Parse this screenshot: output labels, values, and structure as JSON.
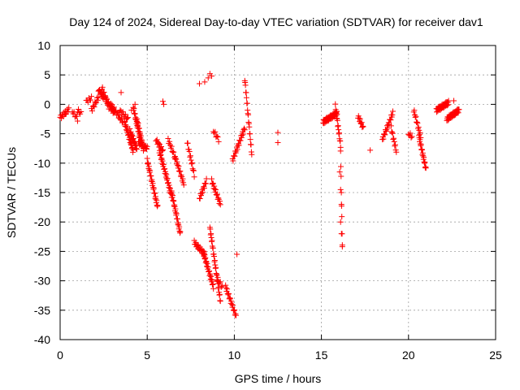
{
  "chart_data": {
    "type": "scatter",
    "title": "Day 124 of 2024, Sidereal Day-to-day VTEC variation (SDTVAR) for receiver dav1",
    "xlabel": "GPS time / hours",
    "ylabel": "SDTVAR / TECUs",
    "xlim": [
      0,
      25
    ],
    "ylim": [
      -40,
      10
    ],
    "xticks": [
      0,
      5,
      10,
      15,
      20,
      25
    ],
    "xtick_labels": [
      "0",
      "5",
      "10",
      "15",
      "20",
      "25"
    ],
    "yticks": [
      10,
      5,
      0,
      -5,
      -10,
      -15,
      -20,
      -25,
      -30,
      -35,
      -40
    ],
    "ytick_labels": [
      "10",
      "5",
      "0",
      "-5",
      "-10",
      "-15",
      "-20",
      "-25",
      "-30",
      "-35",
      "-40"
    ],
    "grid": true,
    "marker": "+",
    "series": [
      {
        "name": "SDTVAR",
        "color": "#ff0000",
        "segments": [
          {
            "x0": 0.0,
            "x1": 0.3,
            "y0": -2.2,
            "y1": -1.5,
            "step": 0.04
          },
          {
            "x0": 0.3,
            "x1": 0.5,
            "y0": -1.5,
            "y1": -0.8,
            "step": 0.04
          },
          {
            "x0": 0.7,
            "x1": 1.0,
            "y0": -1.2,
            "y1": -2.5,
            "step": 0.05
          },
          {
            "x0": 1.0,
            "x1": 1.2,
            "y0": -1.0,
            "y1": -1.6,
            "step": 0.05
          },
          {
            "x0": 1.5,
            "x1": 1.8,
            "y0": 0.5,
            "y1": 1.0,
            "step": 0.05
          },
          {
            "x0": 1.8,
            "x1": 2.2,
            "y0": -1.0,
            "y1": 1.2,
            "step": 0.04
          },
          {
            "x0": 2.2,
            "x1": 2.5,
            "y0": 2.5,
            "y1": 1.0,
            "step": 0.03
          },
          {
            "x0": 2.4,
            "x1": 2.8,
            "y0": 2.8,
            "y1": -0.5,
            "step": 0.03
          },
          {
            "x0": 2.6,
            "x1": 3.1,
            "y0": 1.0,
            "y1": -1.5,
            "step": 0.03
          },
          {
            "x0": 2.9,
            "x1": 3.6,
            "y0": 0.0,
            "y1": -3.0,
            "step": 0.04
          },
          {
            "x0": 3.4,
            "x1": 3.9,
            "y0": -1.0,
            "y1": -2.5,
            "step": 0.05
          },
          {
            "x0": 3.7,
            "x1": 4.2,
            "y0": -3.0,
            "y1": -8.0,
            "step": 0.02
          },
          {
            "x0": 4.0,
            "x1": 4.4,
            "y0": -4.5,
            "y1": -7.5,
            "step": 0.02
          },
          {
            "x0": 4.2,
            "x1": 4.6,
            "y0": -0.5,
            "y1": -6.0,
            "step": 0.02
          },
          {
            "x0": 4.4,
            "x1": 4.8,
            "y0": -2.5,
            "y1": -7.8,
            "step": 0.02
          },
          {
            "x0": 4.5,
            "x1": 5.0,
            "y0": -6.5,
            "y1": -7.5,
            "step": 0.03
          },
          {
            "x0": 5.0,
            "x1": 5.6,
            "y0": -9.5,
            "y1": -17.5,
            "step": 0.02
          },
          {
            "x0": 5.5,
            "x1": 5.9,
            "y0": -6.0,
            "y1": -8.0,
            "step": 0.03
          },
          {
            "x0": 5.7,
            "x1": 6.4,
            "y0": -8.0,
            "y1": -15.5,
            "step": 0.02
          },
          {
            "x0": 6.4,
            "x1": 6.9,
            "y0": -15.0,
            "y1": -22.0,
            "step": 0.02
          },
          {
            "x0": 6.2,
            "x1": 6.6,
            "y0": -6.0,
            "y1": -9.0,
            "step": 0.04
          },
          {
            "x0": 6.6,
            "x1": 7.1,
            "y0": -9.0,
            "y1": -13.5,
            "step": 0.03
          },
          {
            "x0": 7.3,
            "x1": 7.7,
            "y0": -6.5,
            "y1": -12.0,
            "step": 0.03
          },
          {
            "x0": 7.7,
            "x1": 8.3,
            "y0": -23.5,
            "y1": -25.5,
            "step": 0.03
          },
          {
            "x0": 8.0,
            "x1": 8.4,
            "y0": -16.0,
            "y1": -13.0,
            "step": 0.03
          },
          {
            "x0": 8.2,
            "x1": 8.8,
            "y0": -25.0,
            "y1": -31.0,
            "step": 0.02
          },
          {
            "x0": 8.6,
            "x1": 9.2,
            "y0": -21.0,
            "y1": -33.5,
            "step": 0.02
          },
          {
            "x0": 8.7,
            "x1": 9.2,
            "y0": -13.0,
            "y1": -17.0,
            "step": 0.03
          },
          {
            "x0": 8.8,
            "x1": 9.1,
            "y0": -4.5,
            "y1": -6.0,
            "step": 0.05
          },
          {
            "x0": 9.0,
            "x1": 9.3,
            "y0": -29.5,
            "y1": -31.0,
            "step": 0.05
          },
          {
            "x0": 9.5,
            "x1": 10.1,
            "y0": -31.0,
            "y1": -36.0,
            "step": 0.03
          },
          {
            "x0": 9.9,
            "x1": 10.6,
            "y0": -9.5,
            "y1": -4.0,
            "step": 0.03
          },
          {
            "x0": 10.6,
            "x1": 11.0,
            "y0": 4.3,
            "y1": -8.5,
            "step": 0.02
          },
          {
            "x0": 15.1,
            "x1": 15.9,
            "y0": -3.0,
            "y1": -1.5,
            "step": 0.02
          },
          {
            "x0": 15.8,
            "x1": 16.1,
            "y0": -0.3,
            "y1": -7.0,
            "step": 0.02
          },
          {
            "x0": 16.1,
            "x1": 16.2,
            "y0": -8.0,
            "y1": -24.0,
            "step": 0.015
          },
          {
            "x0": 17.1,
            "x1": 17.4,
            "y0": -2.0,
            "y1": -4.0,
            "step": 0.03
          },
          {
            "x0": 18.5,
            "x1": 19.1,
            "y0": -6.0,
            "y1": -1.5,
            "step": 0.03
          },
          {
            "x0": 19.0,
            "x1": 19.3,
            "y0": -4.0,
            "y1": -8.0,
            "step": 0.03
          },
          {
            "x0": 20.0,
            "x1": 20.2,
            "y0": -5.0,
            "y1": -5.5,
            "step": 0.05
          },
          {
            "x0": 20.3,
            "x1": 20.7,
            "y0": -1.0,
            "y1": -5.5,
            "step": 0.03
          },
          {
            "x0": 20.6,
            "x1": 21.0,
            "y0": -5.5,
            "y1": -11.0,
            "step": 0.02
          },
          {
            "x0": 21.6,
            "x1": 22.3,
            "y0": -1.0,
            "y1": 0.3,
            "step": 0.02
          },
          {
            "x0": 22.2,
            "x1": 22.9,
            "y0": -2.5,
            "y1": -1.0,
            "step": 0.02
          }
        ],
        "points": [
          {
            "x": 6.3,
            "y": -15.0
          },
          {
            "x": 8.0,
            "y": 3.5
          },
          {
            "x": 8.3,
            "y": 3.8
          },
          {
            "x": 8.5,
            "y": 4.5
          },
          {
            "x": 8.6,
            "y": 5.2
          },
          {
            "x": 8.7,
            "y": 4.8
          },
          {
            "x": 10.15,
            "y": -25.5
          },
          {
            "x": 12.5,
            "y": -4.8
          },
          {
            "x": 12.5,
            "y": -6.5
          },
          {
            "x": 17.8,
            "y": -7.8
          },
          {
            "x": 16.05,
            "y": -11.5
          },
          {
            "x": 16.1,
            "y": -14.5
          },
          {
            "x": 16.15,
            "y": -17.0
          },
          {
            "x": 16.1,
            "y": -20.0
          },
          {
            "x": 16.15,
            "y": -22.0
          },
          {
            "x": 16.2,
            "y": -24.2
          },
          {
            "x": 5.9,
            "y": 0.5
          },
          {
            "x": 5.95,
            "y": 0.0
          },
          {
            "x": 3.5,
            "y": 2.0
          },
          {
            "x": 4.3,
            "y": 0.0
          },
          {
            "x": 4.1,
            "y": -1.0
          },
          {
            "x": 22.6,
            "y": 0.6
          }
        ]
      }
    ]
  }
}
